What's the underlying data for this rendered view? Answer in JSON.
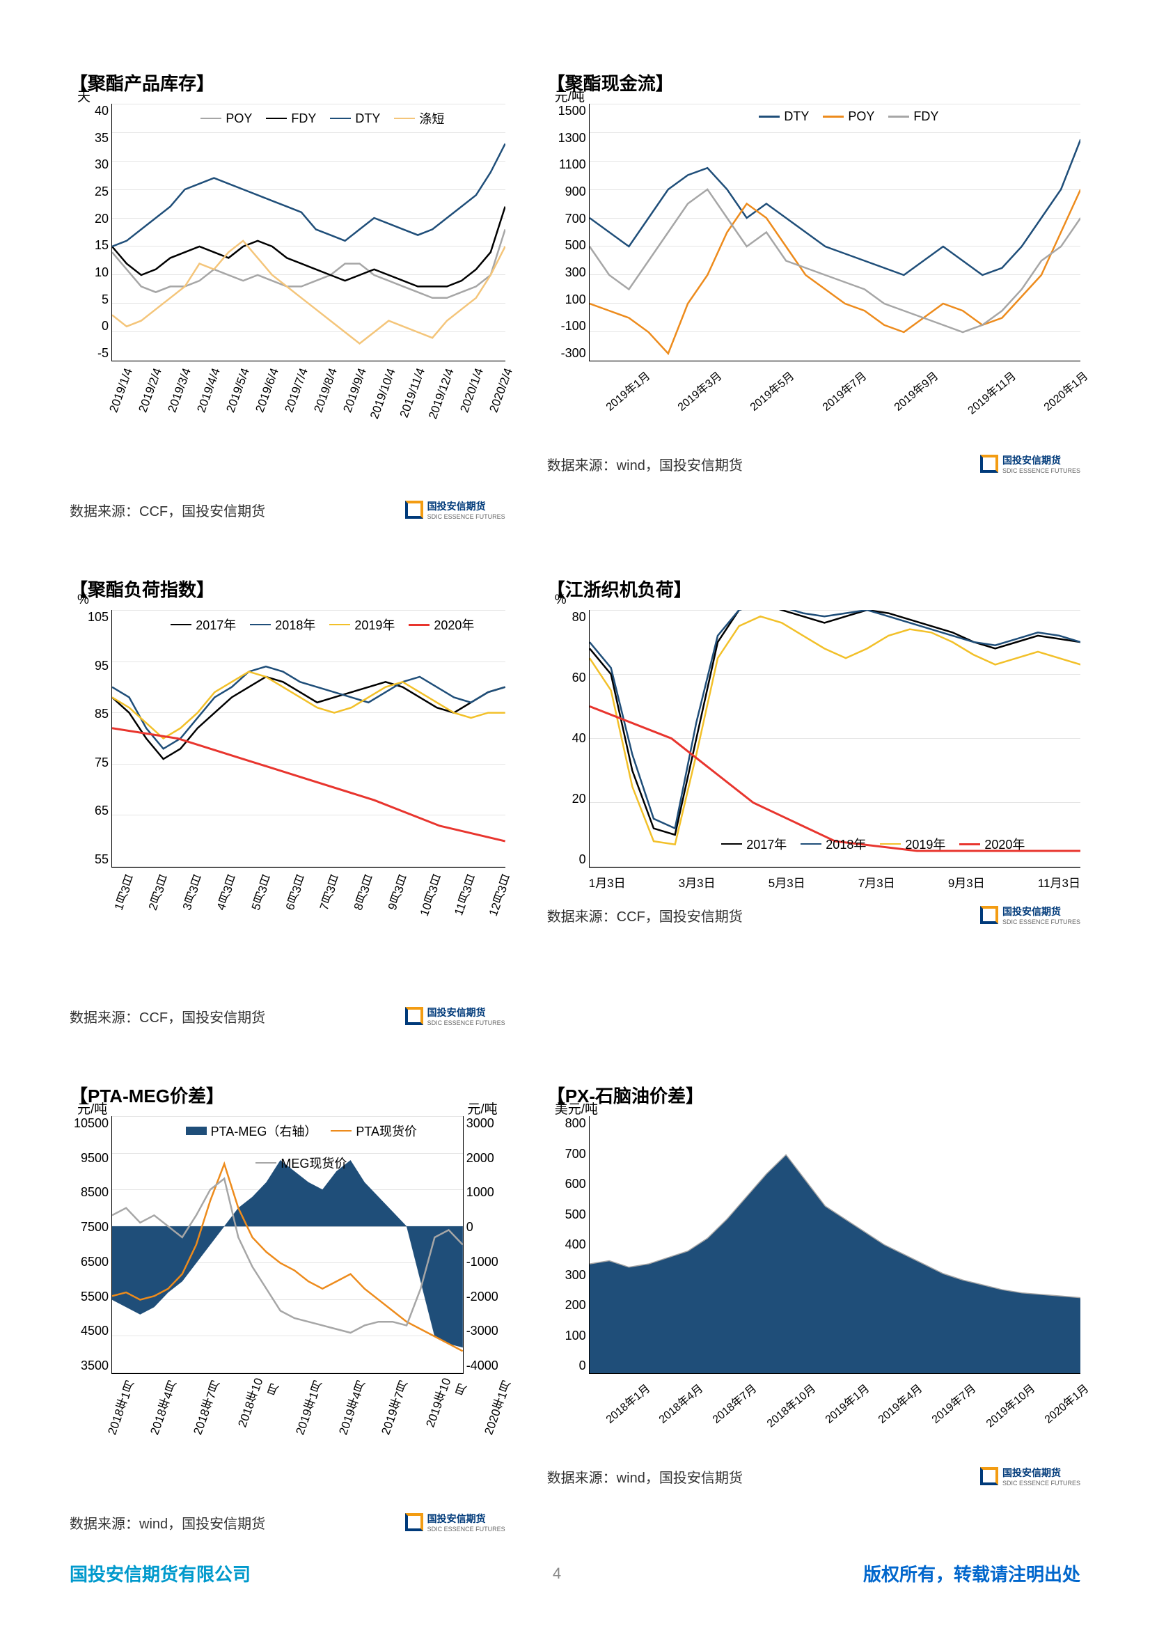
{
  "page_number": "4",
  "footer": {
    "company": "国投安信期货有限公司",
    "copyright": "版权所有，转载请注明出处"
  },
  "logo": {
    "title": "国投安信期货",
    "subtitle": "SDIC ESSENCE FUTURES"
  },
  "charts": [
    {
      "title": "【聚酯产品库存】",
      "y_unit": "天",
      "source": "数据来源：CCF，国投安信期货",
      "type": "line",
      "ylim": [
        -5,
        40
      ],
      "ytick_step": 5,
      "y_ticks": [
        "40",
        "35",
        "30",
        "25",
        "20",
        "15",
        "10",
        "5",
        "0",
        "-5"
      ],
      "x_ticks": [
        "2019/1/4",
        "2019/2/4",
        "2019/3/4",
        "2019/4/4",
        "2019/5/4",
        "2019/6/4",
        "2019/7/4",
        "2019/8/4",
        "2019/9/4",
        "2019/10/4",
        "2019/11/4",
        "2019/12/4",
        "2020/1/4",
        "2020/2/4"
      ],
      "x_rot": "vertical",
      "grid": true,
      "series": [
        {
          "name": "POY",
          "color": "#a6a6a6",
          "width": 2.5,
          "data": [
            14,
            11,
            8,
            7,
            8,
            8,
            9,
            11,
            10,
            9,
            10,
            9,
            8,
            8,
            9,
            10,
            12,
            12,
            10,
            9,
            8,
            7,
            6,
            6,
            7,
            8,
            10,
            18
          ]
        },
        {
          "name": "FDY",
          "color": "#000000",
          "width": 2.5,
          "data": [
            15,
            12,
            10,
            11,
            13,
            14,
            15,
            14,
            13,
            15,
            16,
            15,
            13,
            12,
            11,
            10,
            9,
            10,
            11,
            10,
            9,
            8,
            8,
            8,
            9,
            11,
            14,
            22
          ]
        },
        {
          "name": "DTY",
          "color": "#1f4e79",
          "width": 2.5,
          "data": [
            15,
            16,
            18,
            20,
            22,
            25,
            26,
            27,
            26,
            25,
            24,
            23,
            22,
            21,
            18,
            17,
            16,
            18,
            20,
            19,
            18,
            17,
            18,
            20,
            22,
            24,
            28,
            33
          ]
        },
        {
          "name": "涤短",
          "color": "#f4c57a",
          "width": 2.5,
          "data": [
            3,
            1,
            2,
            4,
            6,
            8,
            12,
            11,
            14,
            16,
            13,
            10,
            8,
            6,
            4,
            2,
            0,
            -2,
            0,
            2,
            1,
            0,
            -1,
            2,
            4,
            6,
            10,
            15
          ]
        }
      ]
    },
    {
      "title": "【聚酯现金流】",
      "y_unit": "元/吨",
      "source": "数据来源：wind，国投安信期货",
      "type": "line",
      "ylim": [
        -300,
        1500
      ],
      "ytick_step": 200,
      "y_ticks": [
        "1500",
        "1300",
        "1100",
        "900",
        "700",
        "500",
        "300",
        "100",
        "-100",
        "-300"
      ],
      "x_ticks": [
        "2019年1月",
        "2019年3月",
        "2019年5月",
        "2019年7月",
        "2019年9月",
        "2019年11月",
        "2020年1月"
      ],
      "x_rot": "diag",
      "grid": true,
      "series": [
        {
          "name": "DTY",
          "color": "#1f4e79",
          "width": 2.5,
          "data": [
            700,
            600,
            500,
            700,
            900,
            1000,
            1050,
            900,
            700,
            800,
            700,
            600,
            500,
            450,
            400,
            350,
            300,
            400,
            500,
            400,
            300,
            350,
            500,
            700,
            900,
            1250
          ]
        },
        {
          "name": "POY",
          "color": "#ed8b1c",
          "width": 2.5,
          "data": [
            100,
            50,
            0,
            -100,
            -250,
            100,
            300,
            600,
            800,
            700,
            500,
            300,
            200,
            100,
            50,
            -50,
            -100,
            0,
            100,
            50,
            -50,
            0,
            150,
            300,
            600,
            900
          ]
        },
        {
          "name": "FDY",
          "color": "#a6a6a6",
          "width": 2.5,
          "data": [
            500,
            300,
            200,
            400,
            600,
            800,
            900,
            700,
            500,
            600,
            400,
            350,
            300,
            250,
            200,
            100,
            50,
            0,
            -50,
            -100,
            -50,
            50,
            200,
            400,
            500,
            700
          ]
        }
      ]
    },
    {
      "title": "【聚酯负荷指数】",
      "y_unit": "%",
      "source": "数据来源：CCF，国投安信期货",
      "type": "line",
      "ylim": [
        55,
        105
      ],
      "ytick_step": 10,
      "y_ticks": [
        "105",
        "95",
        "85",
        "75",
        "65",
        "55"
      ],
      "x_ticks": [
        "1月3日",
        "2月3日",
        "3月3日",
        "4月3日",
        "5月3日",
        "6月3日",
        "7月3日",
        "8月3日",
        "9月3日",
        "10月3日",
        "11月3日",
        "12月3日"
      ],
      "x_rot": "vertical",
      "grid": true,
      "series": [
        {
          "name": "2017年",
          "color": "#000000",
          "width": 2.5,
          "data": [
            88,
            85,
            80,
            76,
            78,
            82,
            85,
            88,
            90,
            92,
            91,
            89,
            87,
            88,
            89,
            90,
            91,
            90,
            88,
            86,
            85,
            87,
            89,
            90
          ]
        },
        {
          "name": "2018年",
          "color": "#1f4e79",
          "width": 2.5,
          "data": [
            90,
            88,
            82,
            78,
            80,
            84,
            88,
            90,
            93,
            94,
            93,
            91,
            90,
            89,
            88,
            87,
            89,
            91,
            92,
            90,
            88,
            87,
            89,
            90
          ]
        },
        {
          "name": "2019年",
          "color": "#f2c029",
          "width": 2.5,
          "data": [
            88,
            86,
            83,
            80,
            82,
            85,
            89,
            91,
            93,
            92,
            90,
            88,
            86,
            85,
            86,
            88,
            90,
            91,
            89,
            87,
            85,
            84,
            85,
            85
          ]
        },
        {
          "name": "2020年",
          "color": "#e8352e",
          "width": 3,
          "data": [
            82,
            80,
            76,
            72,
            68,
            63,
            60
          ]
        }
      ]
    },
    {
      "title": "【江浙织机负荷】",
      "y_unit": "%",
      "source": "数据来源：CCF，国投安信期货",
      "type": "line",
      "ylim": [
        0,
        80
      ],
      "ytick_step": 20,
      "y_ticks": [
        "80",
        "60",
        "40",
        "20",
        "0"
      ],
      "x_ticks": [
        "1月3日",
        "3月3日",
        "5月3日",
        "7月3日",
        "9月3日",
        "11月3日"
      ],
      "x_rot": "horizontal",
      "grid": true,
      "legend_pos": "bottom",
      "series": [
        {
          "name": "2017年",
          "color": "#000000",
          "width": 2.5,
          "data": [
            68,
            60,
            30,
            12,
            10,
            40,
            70,
            80,
            82,
            80,
            78,
            76,
            78,
            80,
            79,
            77,
            75,
            73,
            70,
            68,
            70,
            72,
            71,
            70
          ]
        },
        {
          "name": "2018年",
          "color": "#1f4e79",
          "width": 2.5,
          "data": [
            70,
            62,
            35,
            15,
            12,
            45,
            72,
            80,
            82,
            81,
            79,
            78,
            79,
            80,
            78,
            76,
            74,
            72,
            70,
            69,
            71,
            73,
            72,
            70
          ]
        },
        {
          "name": "2019年",
          "color": "#f2c029",
          "width": 2.5,
          "data": [
            65,
            55,
            25,
            8,
            7,
            35,
            65,
            75,
            78,
            76,
            72,
            68,
            65,
            68,
            72,
            74,
            73,
            70,
            66,
            63,
            65,
            67,
            65,
            63
          ]
        },
        {
          "name": "2020年",
          "color": "#e8352e",
          "width": 3,
          "data": [
            50,
            40,
            20,
            8,
            5,
            5,
            5
          ]
        }
      ]
    },
    {
      "title": "【PTA-MEG价差】",
      "y_unit": "元/吨",
      "y_unit_right": "元/吨",
      "source": "数据来源：wind，国投安信期货",
      "type": "combo",
      "ylim": [
        3500,
        10500
      ],
      "ytick_step": 1000,
      "y_ticks": [
        "10500",
        "9500",
        "8500",
        "7500",
        "6500",
        "5500",
        "4500",
        "3500"
      ],
      "y2lim": [
        -4000,
        3000
      ],
      "y2tick_step": 1000,
      "y2_ticks": [
        "3000",
        "2000",
        "1000",
        "0",
        "-1000",
        "-2000",
        "-3000",
        "-4000"
      ],
      "x_ticks": [
        "2018年1月",
        "2018年4月",
        "2018年7月",
        "2018年10月",
        "2019年1月",
        "2019年4月",
        "2019年7月",
        "2019年10月",
        "2020年1月"
      ],
      "x_rot": "vertical",
      "grid": true,
      "series": [
        {
          "name": "PTA-MEG（右轴）",
          "color": "#1f4e79",
          "type": "area",
          "axis": "right",
          "data": [
            -2000,
            -2200,
            -2400,
            -2200,
            -1800,
            -1500,
            -1000,
            -500,
            0,
            500,
            800,
            1200,
            1800,
            1500,
            1200,
            1000,
            1500,
            1800,
            1200,
            800,
            400,
            0,
            -1500,
            -3000,
            -3200,
            -3300
          ]
        },
        {
          "name": "PTA现货价",
          "color": "#ed8b1c",
          "type": "line",
          "width": 2.5,
          "data": [
            5600,
            5700,
            5500,
            5600,
            5800,
            6200,
            7000,
            8200,
            9200,
            8000,
            7200,
            6800,
            6500,
            6300,
            6000,
            5800,
            6000,
            6200,
            5800,
            5500,
            5200,
            4900,
            4700,
            4500,
            4300,
            4100
          ]
        },
        {
          "name": "MEG现货价",
          "color": "#a6a6a6",
          "type": "line",
          "width": 2.5,
          "data": [
            7800,
            8000,
            7600,
            7800,
            7500,
            7200,
            7800,
            8500,
            8800,
            7200,
            6400,
            5800,
            5200,
            5000,
            4900,
            4800,
            4700,
            4600,
            4800,
            4900,
            4900,
            4800,
            5800,
            7200,
            7400,
            7000
          ]
        }
      ]
    },
    {
      "title": "【PX-石脑油价差】",
      "y_unit": "美元/吨",
      "source": "数据来源：wind，国投安信期货",
      "type": "area",
      "ylim": [
        0,
        800
      ],
      "ytick_step": 100,
      "y_ticks": [
        "800",
        "700",
        "600",
        "500",
        "400",
        "300",
        "200",
        "100",
        "0"
      ],
      "x_ticks": [
        "2018年1月",
        "2018年4月",
        "2018年7月",
        "2018年10月",
        "2019年1月",
        "2019年4月",
        "2019年7月",
        "2019年10月",
        "2020年1月"
      ],
      "x_rot": "diag",
      "grid": false,
      "series": [
        {
          "name": "",
          "color": "#1f4e79",
          "type": "area",
          "data": [
            340,
            350,
            330,
            340,
            360,
            380,
            420,
            480,
            550,
            620,
            680,
            600,
            520,
            480,
            440,
            400,
            370,
            340,
            310,
            290,
            275,
            260,
            250,
            245,
            240,
            235
          ]
        }
      ]
    }
  ],
  "colors": {
    "grid": "#e5e5e5",
    "axis": "#000000",
    "bg": "#ffffff"
  }
}
